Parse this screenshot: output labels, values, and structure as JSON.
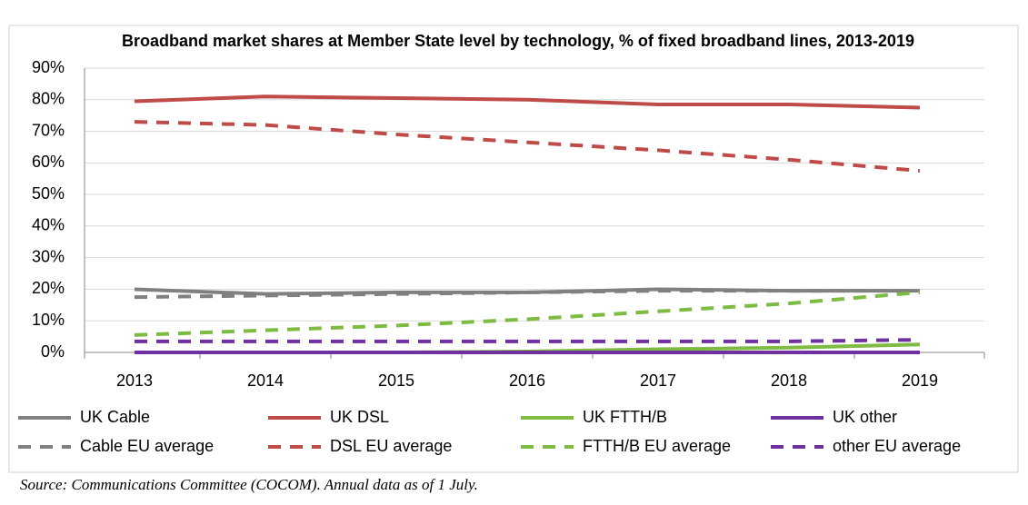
{
  "chart_data": {
    "type": "line",
    "title": "Broadband market shares at Member State level by technology, % of fixed broadband lines, 2013-2019",
    "categories": [
      "2013",
      "2014",
      "2015",
      "2016",
      "2017",
      "2018",
      "2019"
    ],
    "series": [
      {
        "name": "UK Cable",
        "color": "#808080",
        "dashed": false,
        "values": [
          20,
          18.5,
          19,
          19,
          20,
          19.5,
          19.5
        ]
      },
      {
        "name": "UK DSL",
        "color": "#be4b48",
        "dashed": false,
        "values": [
          79.5,
          81,
          80.5,
          80,
          78.5,
          78.5,
          77.5
        ]
      },
      {
        "name": "UK FTTH/B",
        "color": "#7dbb42",
        "dashed": false,
        "values": [
          0,
          0,
          0,
          0.3,
          1,
          1.5,
          2.5
        ]
      },
      {
        "name": "UK other",
        "color": "#7030a0",
        "dashed": false,
        "values": [
          0,
          0,
          0,
          0,
          0,
          0,
          0
        ]
      },
      {
        "name": "Cable EU average",
        "color": "#808080",
        "dashed": true,
        "values": [
          17.5,
          18,
          18.5,
          19,
          19.5,
          19.5,
          19.5
        ]
      },
      {
        "name": "DSL EU average",
        "color": "#be4b48",
        "dashed": true,
        "values": [
          73,
          72,
          69,
          66.5,
          64,
          61,
          57.5
        ]
      },
      {
        "name": "FTTH/B EU average",
        "color": "#7dbb42",
        "dashed": true,
        "values": [
          5.5,
          7,
          8.5,
          10.5,
          13,
          15.5,
          19
        ]
      },
      {
        "name": "other EU average",
        "color": "#7030a0",
        "dashed": true,
        "values": [
          3.5,
          3.5,
          3.5,
          3.5,
          3.5,
          3.5,
          4
        ]
      }
    ],
    "ylim": [
      0,
      90
    ],
    "yticks": [
      {
        "value": 0,
        "label": "0%"
      },
      {
        "value": 10,
        "label": "10%"
      },
      {
        "value": 20,
        "label": "20%"
      },
      {
        "value": 30,
        "label": "30%"
      },
      {
        "value": 40,
        "label": "40%"
      },
      {
        "value": 50,
        "label": "50%"
      },
      {
        "value": 60,
        "label": "60%"
      },
      {
        "value": 70,
        "label": "70%"
      },
      {
        "value": 80,
        "label": "80%"
      },
      {
        "value": 90,
        "label": "90%"
      }
    ],
    "grid": true,
    "legend": "bottom",
    "source": "Source:  Communications Committee (COCOM). Annual data as of  1 July."
  }
}
